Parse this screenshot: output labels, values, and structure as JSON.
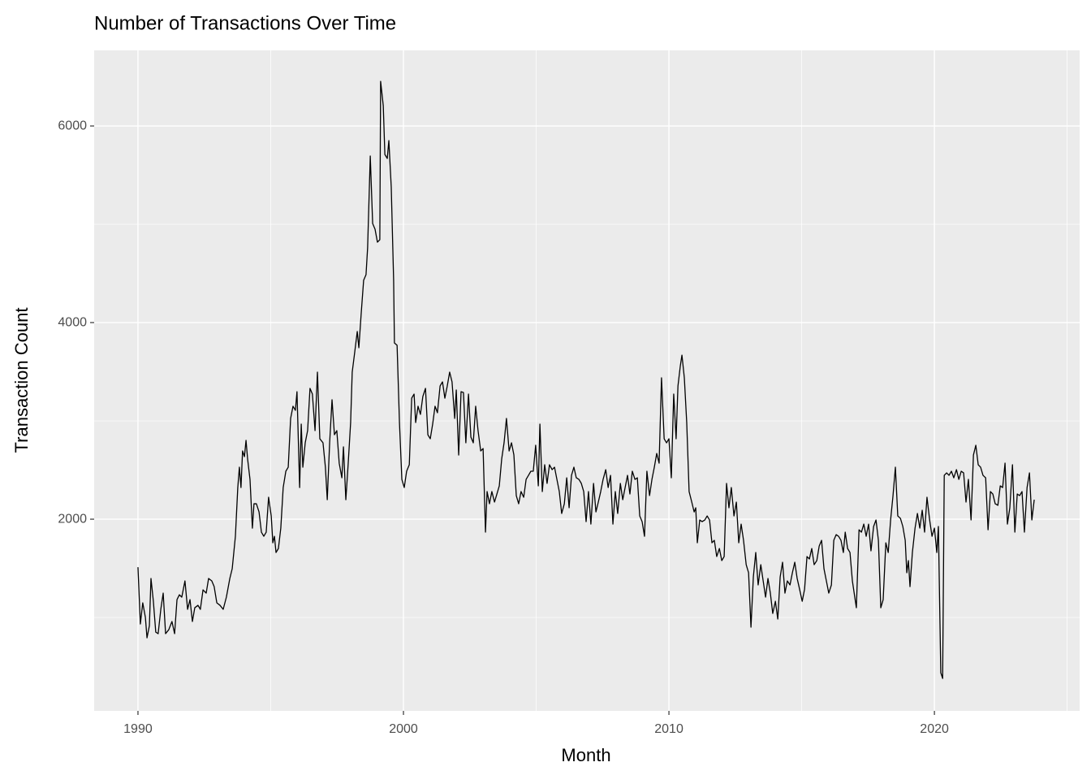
{
  "chart_data": {
    "type": "line",
    "title": "Number of Transactions Over Time",
    "xlabel": "Month",
    "ylabel": "Transaction Count",
    "color": "#000000",
    "grid": true,
    "xlim": [
      1988.35,
      2025.47
    ],
    "xticks": [
      1990,
      2000,
      2010,
      2020
    ],
    "x_minor_grid": [
      1995,
      2005,
      2015,
      2025
    ],
    "ylim": [
      50,
      6769
    ],
    "yticks": [
      2000,
      4000,
      6000
    ],
    "y_minor_grid": [
      1000,
      3000,
      5000
    ],
    "x": [
      1990.0,
      1990.09,
      1990.18,
      1990.28,
      1990.34,
      1990.43,
      1990.49,
      1990.58,
      1990.67,
      1990.76,
      1990.86,
      1990.95,
      1991.04,
      1991.16,
      1991.28,
      1991.38,
      1991.47,
      1991.56,
      1991.65,
      1991.77,
      1991.87,
      1991.96,
      1992.05,
      1992.14,
      1992.26,
      1992.35,
      1992.45,
      1992.57,
      1992.66,
      1992.78,
      1992.87,
      1992.97,
      1993.09,
      1993.21,
      1993.33,
      1993.46,
      1993.55,
      1993.67,
      1993.76,
      1993.82,
      1993.88,
      1993.94,
      1994.01,
      1994.07,
      1994.13,
      1994.22,
      1994.31,
      1994.37,
      1994.46,
      1994.56,
      1994.65,
      1994.74,
      1994.83,
      1994.92,
      1995.02,
      1995.08,
      1995.14,
      1995.2,
      1995.29,
      1995.38,
      1995.47,
      1995.57,
      1995.66,
      1995.75,
      1995.84,
      1995.93,
      1995.99,
      1996.09,
      1996.15,
      1996.21,
      1996.3,
      1996.39,
      1996.48,
      1996.57,
      1996.67,
      1996.76,
      1996.85,
      1996.97,
      1997.06,
      1997.13,
      1997.22,
      1997.31,
      1997.4,
      1997.49,
      1997.58,
      1997.68,
      1997.74,
      1997.83,
      1997.92,
      1998.01,
      1998.07,
      1998.17,
      1998.26,
      1998.32,
      1998.41,
      1998.5,
      1998.59,
      1998.65,
      1998.75,
      1998.84,
      1998.93,
      1999.02,
      1999.11,
      1999.14,
      1999.24,
      1999.3,
      1999.39,
      1999.45,
      1999.54,
      1999.63,
      1999.66,
      1999.76,
      1999.85,
      1999.94,
      2000.03,
      2000.12,
      2000.22,
      2000.31,
      2000.4,
      2000.46,
      2000.55,
      2000.64,
      2000.73,
      2000.83,
      2000.92,
      2001.01,
      2001.1,
      2001.19,
      2001.28,
      2001.38,
      2001.47,
      2001.56,
      2001.65,
      2001.74,
      2001.83,
      2001.93,
      2001.99,
      2002.08,
      2002.17,
      2002.26,
      2002.35,
      2002.45,
      2002.54,
      2002.63,
      2002.72,
      2002.81,
      2002.91,
      2003.0,
      2003.09,
      2003.15,
      2003.24,
      2003.33,
      2003.43,
      2003.52,
      2003.61,
      2003.7,
      2003.79,
      2003.88,
      2003.98,
      2004.07,
      2004.16,
      2004.25,
      2004.34,
      2004.43,
      2004.53,
      2004.62,
      2004.71,
      2004.8,
      2004.89,
      2004.98,
      2005.08,
      2005.14,
      2005.23,
      2005.32,
      2005.41,
      2005.5,
      2005.6,
      2005.69,
      2005.78,
      2005.87,
      2005.96,
      2006.06,
      2006.15,
      2006.24,
      2006.33,
      2006.42,
      2006.51,
      2006.61,
      2006.7,
      2006.79,
      2006.88,
      2006.97,
      2007.06,
      2007.16,
      2007.25,
      2007.34,
      2007.43,
      2007.52,
      2007.62,
      2007.71,
      2007.8,
      2007.89,
      2007.98,
      2008.07,
      2008.17,
      2008.26,
      2008.35,
      2008.44,
      2008.53,
      2008.62,
      2008.72,
      2008.81,
      2008.9,
      2008.99,
      2009.08,
      2009.17,
      2009.27,
      2009.36,
      2009.45,
      2009.54,
      2009.63,
      2009.72,
      2009.82,
      2009.91,
      2010.0,
      2010.09,
      2010.18,
      2010.27,
      2010.34,
      2010.43,
      2010.49,
      2010.58,
      2010.67,
      2010.76,
      2010.86,
      2010.95,
      2011.01,
      2011.07,
      2011.16,
      2011.25,
      2011.35,
      2011.44,
      2011.53,
      2011.62,
      2011.71,
      2011.8,
      2011.9,
      2011.99,
      2012.08,
      2012.17,
      2012.26,
      2012.35,
      2012.45,
      2012.54,
      2012.63,
      2012.72,
      2012.81,
      2012.91,
      2013.0,
      2013.09,
      2013.18,
      2013.27,
      2013.36,
      2013.46,
      2013.55,
      2013.64,
      2013.73,
      2013.82,
      2013.91,
      2014.01,
      2014.1,
      2014.19,
      2014.28,
      2014.37,
      2014.46,
      2014.56,
      2014.65,
      2014.74,
      2014.83,
      2014.92,
      2015.02,
      2015.11,
      2015.2,
      2015.29,
      2015.38,
      2015.47,
      2015.57,
      2015.66,
      2015.75,
      2015.84,
      2015.93,
      2016.02,
      2016.12,
      2016.21,
      2016.3,
      2016.39,
      2016.48,
      2016.57,
      2016.64,
      2016.73,
      2016.82,
      2016.91,
      2017.0,
      2017.06,
      2017.16,
      2017.25,
      2017.34,
      2017.43,
      2017.52,
      2017.61,
      2017.71,
      2017.8,
      2017.89,
      2017.98,
      2018.07,
      2018.17,
      2018.26,
      2018.35,
      2018.44,
      2018.53,
      2018.62,
      2018.72,
      2018.81,
      2018.9,
      2018.96,
      2019.02,
      2019.08,
      2019.17,
      2019.27,
      2019.36,
      2019.45,
      2019.54,
      2019.63,
      2019.72,
      2019.82,
      2019.91,
      2020.0,
      2020.09,
      2020.15,
      2020.21,
      2020.24,
      2020.31,
      2020.37,
      2020.46,
      2020.55,
      2020.64,
      2020.73,
      2020.83,
      2020.92,
      2021.01,
      2021.1,
      2021.19,
      2021.28,
      2021.38,
      2021.47,
      2021.56,
      2021.65,
      2021.74,
      2021.83,
      2021.93,
      2022.02,
      2022.11,
      2022.2,
      2022.29,
      2022.39,
      2022.48,
      2022.57,
      2022.66,
      2022.75,
      2022.84,
      2022.94,
      2023.03,
      2023.12,
      2023.21,
      2023.3,
      2023.39,
      2023.49,
      2023.58,
      2023.67,
      2023.76
    ],
    "values": [
      1512,
      934,
      1149,
      1000,
      793,
      917,
      1397,
      1165,
      851,
      835,
      1083,
      1248,
      835,
      876,
      959,
      835,
      1182,
      1231,
      1207,
      1372,
      1083,
      1182,
      959,
      1099,
      1124,
      1083,
      1281,
      1248,
      1397,
      1372,
      1314,
      1149,
      1124,
      1083,
      1207,
      1397,
      1496,
      1826,
      2322,
      2529,
      2322,
      2694,
      2636,
      2802,
      2612,
      2405,
      1909,
      2157,
      2157,
      2074,
      1868,
      1826,
      1868,
      2223,
      2033,
      1760,
      1826,
      1661,
      1702,
      1909,
      2322,
      2488,
      2529,
      3025,
      3149,
      3107,
      3297,
      2322,
      2967,
      2529,
      2777,
      2901,
      3331,
      3273,
      2901,
      3496,
      2818,
      2777,
      2529,
      2198,
      2777,
      3215,
      2859,
      2901,
      2570,
      2421,
      2736,
      2198,
      2570,
      2983,
      3496,
      3711,
      3909,
      3744,
      4099,
      4430,
      4487,
      4760,
      5694,
      5008,
      4950,
      4818,
      4843,
      6454,
      6206,
      5710,
      5669,
      5851,
      5380,
      4430,
      3793,
      3769,
      2983,
      2405,
      2322,
      2488,
      2554,
      3231,
      3273,
      2983,
      3149,
      3066,
      3248,
      3331,
      2859,
      2818,
      2967,
      3149,
      3083,
      3355,
      3397,
      3231,
      3355,
      3496,
      3397,
      3025,
      3314,
      2653,
      3297,
      3289,
      2777,
      3273,
      2835,
      2777,
      3149,
      2901,
      2694,
      2719,
      1868,
      2281,
      2157,
      2281,
      2174,
      2256,
      2339,
      2612,
      2777,
      3025,
      2694,
      2777,
      2653,
      2240,
      2157,
      2281,
      2223,
      2405,
      2446,
      2488,
      2488,
      2752,
      2339,
      2967,
      2281,
      2554,
      2364,
      2554,
      2504,
      2529,
      2405,
      2281,
      2058,
      2157,
      2421,
      2116,
      2446,
      2529,
      2421,
      2405,
      2364,
      2281,
      1975,
      2281,
      1950,
      2364,
      2074,
      2174,
      2281,
      2405,
      2504,
      2322,
      2446,
      1950,
      2281,
      2058,
      2364,
      2198,
      2322,
      2446,
      2256,
      2488,
      2405,
      2421,
      2033,
      1975,
      1826,
      2488,
      2240,
      2405,
      2529,
      2669,
      2570,
      3438,
      2818,
      2777,
      2818,
      2421,
      3273,
      2818,
      3355,
      3562,
      3669,
      3438,
      2983,
      2281,
      2174,
      2074,
      2116,
      1760,
      1992,
      1975,
      1992,
      2033,
      1992,
      1760,
      1785,
      1620,
      1702,
      1579,
      1620,
      2364,
      2116,
      2322,
      2033,
      2174,
      1760,
      1950,
      1785,
      1537,
      1455,
      901,
      1413,
      1661,
      1331,
      1537,
      1372,
      1207,
      1397,
      1248,
      1041,
      1165,
      984,
      1413,
      1562,
      1248,
      1372,
      1331,
      1455,
      1562,
      1397,
      1289,
      1165,
      1289,
      1620,
      1595,
      1702,
      1537,
      1579,
      1727,
      1785,
      1496,
      1372,
      1248,
      1331,
      1785,
      1843,
      1826,
      1785,
      1661,
      1868,
      1702,
      1661,
      1372,
      1207,
      1099,
      1892,
      1868,
      1950,
      1826,
      1950,
      1678,
      1926,
      1992,
      1785,
      1099,
      1182,
      1760,
      1661,
      1992,
      2240,
      2529,
      2033,
      2008,
      1926,
      1785,
      1455,
      1579,
      1314,
      1661,
      1909,
      2058,
      1909,
      2091,
      1868,
      2223,
      1992,
      1826,
      1909,
      1661,
      1926,
      934,
      438,
      380,
      2446,
      2471,
      2446,
      2488,
      2421,
      2504,
      2405,
      2488,
      2471,
      2174,
      2405,
      1992,
      2653,
      2752,
      2554,
      2529,
      2446,
      2421,
      1892,
      2281,
      2256,
      2157,
      2141,
      2339,
      2322,
      2570,
      1950,
      2116,
      2554,
      1868,
      2256,
      2240,
      2281,
      1868,
      2322,
      2471,
      1992,
      2198
    ]
  }
}
